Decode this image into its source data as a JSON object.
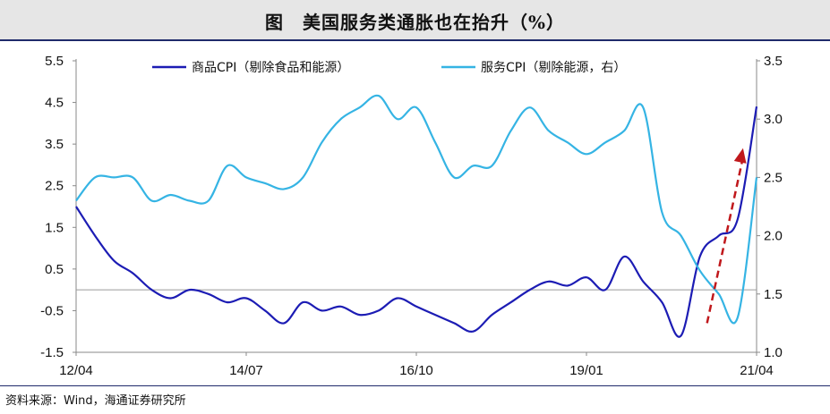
{
  "chart_data": {
    "type": "line",
    "title": "图　美国服务类通胀也在抬升（%）",
    "source": "资料来源：Wind，海通证券研究所",
    "x_tick_labels": [
      "12/04",
      "14/07",
      "16/10",
      "19/01",
      "21/04"
    ],
    "left_axis": {
      "ylim": [
        -1.5,
        5.5
      ],
      "ticks": [
        "5.5",
        "4.5",
        "3.5",
        "2.5",
        "1.5",
        "0.5",
        "-0.5",
        "-1.5"
      ]
    },
    "right_axis": {
      "ylim": [
        1.0,
        3.5
      ],
      "ticks": [
        "3.5",
        "3.0",
        "2.5",
        "2.0",
        "1.5",
        "1.0"
      ]
    },
    "legend_placement": "top",
    "series": [
      {
        "name": "商品CPI（剔除食品和能源）",
        "axis": "left",
        "color": "#1c1cb4",
        "x": [
          "2012-04",
          "2012-07",
          "2012-10",
          "2013-01",
          "2013-04",
          "2013-07",
          "2013-10",
          "2014-01",
          "2014-04",
          "2014-07",
          "2014-10",
          "2015-01",
          "2015-04",
          "2015-07",
          "2015-10",
          "2016-01",
          "2016-04",
          "2016-07",
          "2016-10",
          "2017-01",
          "2017-04",
          "2017-07",
          "2017-10",
          "2018-01",
          "2018-04",
          "2018-07",
          "2018-10",
          "2019-01",
          "2019-04",
          "2019-07",
          "2019-10",
          "2020-01",
          "2020-04",
          "2020-07",
          "2020-10",
          "2021-01",
          "2021-04"
        ],
        "values": [
          2.0,
          1.3,
          0.7,
          0.4,
          0.0,
          -0.2,
          0.0,
          -0.1,
          -0.3,
          -0.2,
          -0.5,
          -0.8,
          -0.3,
          -0.5,
          -0.4,
          -0.6,
          -0.5,
          -0.2,
          -0.4,
          -0.6,
          -0.8,
          -1.0,
          -0.6,
          -0.3,
          0.0,
          0.2,
          0.1,
          0.3,
          0.0,
          0.8,
          0.2,
          -0.3,
          -1.1,
          0.8,
          1.3,
          1.7,
          4.4
        ]
      },
      {
        "name": "服务CPI（剔除能源，右）",
        "axis": "right",
        "color": "#35b4e4",
        "x": [
          "2012-04",
          "2012-07",
          "2012-10",
          "2013-01",
          "2013-04",
          "2013-07",
          "2013-10",
          "2014-01",
          "2014-04",
          "2014-07",
          "2014-10",
          "2015-01",
          "2015-04",
          "2015-07",
          "2015-10",
          "2016-01",
          "2016-04",
          "2016-07",
          "2016-10",
          "2017-01",
          "2017-04",
          "2017-07",
          "2017-10",
          "2018-01",
          "2018-04",
          "2018-07",
          "2018-10",
          "2019-01",
          "2019-04",
          "2019-07",
          "2019-10",
          "2020-01",
          "2020-04",
          "2020-07",
          "2020-10",
          "2021-01",
          "2021-04"
        ],
        "values": [
          2.3,
          2.5,
          2.5,
          2.5,
          2.3,
          2.35,
          2.3,
          2.3,
          2.6,
          2.5,
          2.45,
          2.4,
          2.5,
          2.8,
          3.0,
          3.1,
          3.2,
          3.0,
          3.1,
          2.8,
          2.5,
          2.6,
          2.6,
          2.9,
          3.1,
          2.9,
          2.8,
          2.7,
          2.8,
          2.9,
          3.1,
          2.2,
          2.0,
          1.7,
          1.5,
          1.3,
          2.5
        ]
      }
    ],
    "annotations": [
      {
        "type": "dashed-arrow",
        "color": "#c0181c",
        "direction": "up"
      }
    ]
  }
}
